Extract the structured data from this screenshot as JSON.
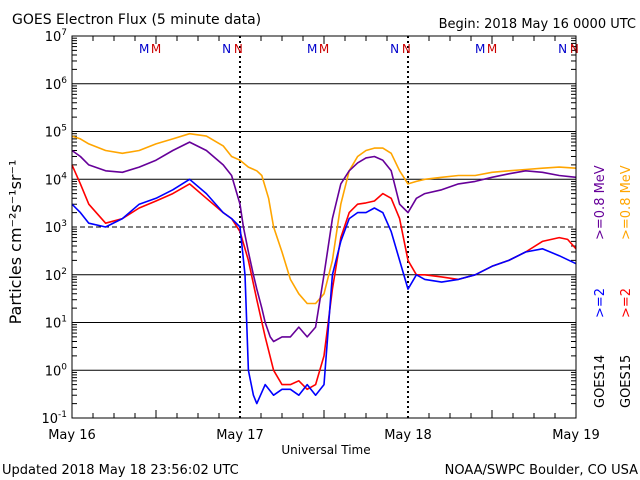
{
  "chart_data": {
    "type": "line",
    "title": "GOES Electron Flux (5 minute data)",
    "begin_label": "Begin: 2018 May 16 0000 UTC",
    "xlabel": "Universal Time",
    "ylabel": "Particles cm⁻²s⁻¹sr⁻¹",
    "yscale": "log",
    "ylim": [
      0.1,
      10000000
    ],
    "xlim": [
      0,
      3
    ],
    "x_ticks": [
      {
        "x": 0,
        "label": "May 16"
      },
      {
        "x": 1,
        "label": "May 17"
      },
      {
        "x": 2,
        "label": "May 18"
      },
      {
        "x": 3,
        "label": "May 19"
      }
    ],
    "y_ticks": [
      {
        "value": 0.1,
        "base": "10",
        "exp": "-1"
      },
      {
        "value": 1,
        "base": "10",
        "exp": "0"
      },
      {
        "value": 10,
        "base": "10",
        "exp": "1"
      },
      {
        "value": 100,
        "base": "10",
        "exp": "2"
      },
      {
        "value": 1000,
        "base": "10",
        "exp": "3"
      },
      {
        "value": 10000,
        "base": "10",
        "exp": "4"
      },
      {
        "value": 100000,
        "base": "10",
        "exp": "5"
      },
      {
        "value": 1000000,
        "base": "10",
        "exp": "6"
      },
      {
        "value": 10000000,
        "base": "10",
        "exp": "7"
      }
    ],
    "threshold": 1000,
    "markers": [
      {
        "x": 0.43,
        "label": "M",
        "color": "#0000cc"
      },
      {
        "x": 0.5,
        "label": "M",
        "color": "#cc0000"
      },
      {
        "x": 0.92,
        "label": "N",
        "color": "#0000cc"
      },
      {
        "x": 0.99,
        "label": "N",
        "color": "#cc0000"
      },
      {
        "x": 1.43,
        "label": "M",
        "color": "#0000cc"
      },
      {
        "x": 1.5,
        "label": "M",
        "color": "#cc0000"
      },
      {
        "x": 1.92,
        "label": "N",
        "color": "#0000cc"
      },
      {
        "x": 1.99,
        "label": "N",
        "color": "#cc0000"
      },
      {
        "x": 2.43,
        "label": "M",
        "color": "#0000cc"
      },
      {
        "x": 2.5,
        "label": "M",
        "color": "#cc0000"
      },
      {
        "x": 2.92,
        "label": "N",
        "color": "#0000cc"
      },
      {
        "x": 2.99,
        "label": "N",
        "color": "#cc0000"
      }
    ],
    "series": [
      {
        "name": ">=0.8 MeV",
        "satellite": "GOES15",
        "color": "#ffa500",
        "x": [
          0,
          0.05,
          0.1,
          0.2,
          0.3,
          0.4,
          0.5,
          0.6,
          0.7,
          0.8,
          0.9,
          0.95,
          1.0,
          1.05,
          1.1,
          1.13,
          1.17,
          1.2,
          1.25,
          1.3,
          1.35,
          1.4,
          1.45,
          1.5,
          1.55,
          1.6,
          1.65,
          1.7,
          1.75,
          1.8,
          1.85,
          1.9,
          1.95,
          2.0,
          2.05,
          2.1,
          2.2,
          2.3,
          2.4,
          2.5,
          2.6,
          2.7,
          2.8,
          2.9,
          3.0
        ],
        "y": [
          80000,
          70000,
          55000,
          40000,
          35000,
          40000,
          55000,
          70000,
          90000,
          80000,
          50000,
          30000,
          25000,
          18000,
          15000,
          12000,
          4000,
          1000,
          300,
          80,
          40,
          25,
          25,
          40,
          200,
          3000,
          15000,
          30000,
          40000,
          45000,
          45000,
          35000,
          15000,
          8000,
          9000,
          10000,
          11000,
          12000,
          12000,
          14000,
          15000,
          16000,
          17000,
          18000,
          17000
        ]
      },
      {
        "name": ">=0.8 MeV",
        "satellite": "GOES14",
        "color": "#660099",
        "x": [
          0,
          0.05,
          0.1,
          0.2,
          0.3,
          0.4,
          0.5,
          0.6,
          0.7,
          0.8,
          0.9,
          0.95,
          1.0,
          1.02,
          1.05,
          1.08,
          1.1,
          1.13,
          1.15,
          1.18,
          1.2,
          1.25,
          1.3,
          1.35,
          1.4,
          1.45,
          1.5,
          1.55,
          1.6,
          1.65,
          1.7,
          1.75,
          1.8,
          1.85,
          1.9,
          1.95,
          2.0,
          2.05,
          2.1,
          2.2,
          2.3,
          2.4,
          2.5,
          2.6,
          2.7,
          2.8,
          2.9,
          3.0
        ],
        "y": [
          40000,
          30000,
          20000,
          15000,
          14000,
          18000,
          25000,
          40000,
          60000,
          40000,
          20000,
          12000,
          3000,
          1000,
          300,
          100,
          50,
          20,
          10,
          5,
          4,
          5,
          5,
          8,
          5,
          8,
          100,
          1500,
          8000,
          15000,
          22000,
          28000,
          30000,
          25000,
          15000,
          3000,
          2000,
          4000,
          5000,
          6000,
          8000,
          9000,
          11000,
          13000,
          15000,
          14000,
          12000,
          11000
        ]
      },
      {
        "name": ">=2 MeV",
        "satellite": "GOES15",
        "color": "#ff0000",
        "x": [
          0,
          0.05,
          0.1,
          0.2,
          0.3,
          0.4,
          0.5,
          0.6,
          0.7,
          0.8,
          0.9,
          0.95,
          1.0,
          1.05,
          1.1,
          1.15,
          1.2,
          1.25,
          1.3,
          1.35,
          1.4,
          1.45,
          1.5,
          1.55,
          1.6,
          1.65,
          1.7,
          1.75,
          1.8,
          1.85,
          1.9,
          1.95,
          2.0,
          2.05,
          2.1,
          2.2,
          2.3,
          2.4,
          2.5,
          2.6,
          2.7,
          2.8,
          2.9,
          2.95,
          3.0
        ],
        "y": [
          20000,
          8000,
          3000,
          1200,
          1500,
          2500,
          3500,
          5000,
          8000,
          4000,
          2000,
          1500,
          800,
          200,
          30,
          5,
          1,
          0.5,
          0.5,
          0.6,
          0.4,
          0.5,
          2,
          50,
          600,
          2000,
          3000,
          3200,
          3500,
          5000,
          4000,
          1500,
          200,
          100,
          100,
          90,
          80,
          100,
          150,
          200,
          300,
          500,
          600,
          550,
          350
        ]
      },
      {
        "name": ">=2 MeV",
        "satellite": "GOES14",
        "color": "#0000ff",
        "x": [
          0,
          0.05,
          0.1,
          0.2,
          0.3,
          0.4,
          0.5,
          0.6,
          0.7,
          0.8,
          0.9,
          0.95,
          1.0,
          1.03,
          1.05,
          1.08,
          1.1,
          1.15,
          1.2,
          1.25,
          1.3,
          1.35,
          1.4,
          1.45,
          1.5,
          1.55,
          1.6,
          1.65,
          1.7,
          1.75,
          1.8,
          1.85,
          1.9,
          1.95,
          2.0,
          2.05,
          2.1,
          2.2,
          2.3,
          2.4,
          2.5,
          2.6,
          2.7,
          2.8,
          2.9,
          3.0
        ],
        "y": [
          3000,
          2000,
          1200,
          1000,
          1500,
          3000,
          4000,
          6000,
          10000,
          5000,
          2000,
          1500,
          1000,
          100,
          1,
          0.3,
          0.2,
          0.5,
          0.3,
          0.4,
          0.4,
          0.3,
          0.5,
          0.3,
          0.5,
          100,
          500,
          1500,
          2000,
          2000,
          2500,
          2000,
          800,
          200,
          50,
          100,
          80,
          70,
          80,
          100,
          150,
          200,
          300,
          350,
          250,
          170
        ]
      }
    ],
    "right_legend": [
      {
        "text": "GOES14",
        "color": "#000000",
        "row": 0,
        "level": 0
      },
      {
        "text": ">=2",
        "color": "#0000ff",
        "row": 0,
        "level": 1
      },
      {
        "text": ">=0.8 MeV",
        "color": "#660099",
        "row": 0,
        "level": 2
      },
      {
        "text": "GOES15",
        "color": "#000000",
        "row": 1,
        "level": 0
      },
      {
        "text": ">=2",
        "color": "#ff0000",
        "row": 1,
        "level": 1
      },
      {
        "text": ">=0.8 MeV",
        "color": "#ffa500",
        "row": 1,
        "level": 2
      }
    ]
  },
  "footer": {
    "updated": "Updated 2018 May 18 23:56:02 UTC",
    "credit": "NOAA/SWPC Boulder, CO USA"
  }
}
